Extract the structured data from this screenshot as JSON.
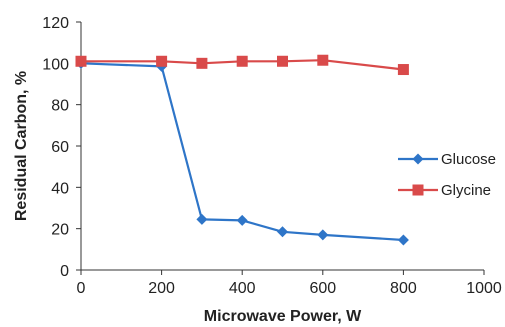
{
  "chart_data": {
    "type": "line",
    "xlabel": "Microwave Power, W",
    "ylabel": "Residual Carbon, %",
    "xlim": [
      0,
      1000
    ],
    "ylim": [
      0,
      120
    ],
    "xticks": [
      "0",
      "200",
      "400",
      "600",
      "800",
      "1000"
    ],
    "yticks": [
      "0",
      "20",
      "40",
      "60",
      "80",
      "100",
      "120"
    ],
    "grid": false,
    "legend": "right",
    "series": [
      {
        "name": "Glucose",
        "color": "#2E75C8",
        "marker": "diamond",
        "x": [
          0,
          200,
          300,
          400,
          500,
          600,
          800
        ],
        "values": [
          100,
          98.5,
          24.5,
          24,
          18.5,
          17,
          14.5
        ]
      },
      {
        "name": "Glycine",
        "color": "#D94A4A",
        "marker": "square",
        "x": [
          0,
          200,
          300,
          400,
          500,
          600,
          800
        ],
        "values": [
          101,
          101,
          100,
          101,
          101,
          101.5,
          97
        ]
      }
    ]
  }
}
